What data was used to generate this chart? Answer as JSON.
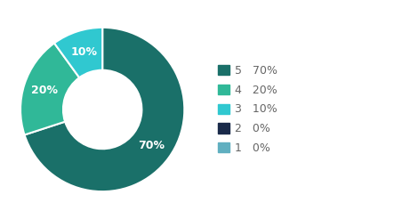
{
  "slices": [
    70,
    20,
    10,
    0,
    0
  ],
  "labels": [
    "5",
    "4",
    "3",
    "2",
    "1"
  ],
  "percentages": [
    "70%",
    "20%",
    "10%",
    "0%",
    "0%"
  ],
  "colors": [
    "#1a7069",
    "#30b898",
    "#30c8d0",
    "#1a2a4a",
    "#60afc0"
  ],
  "background_color": "#ffffff",
  "wedge_text_color": "#ffffff",
  "legend_text_color": "#666666",
  "font_size_labels": 9,
  "font_size_legend": 9
}
